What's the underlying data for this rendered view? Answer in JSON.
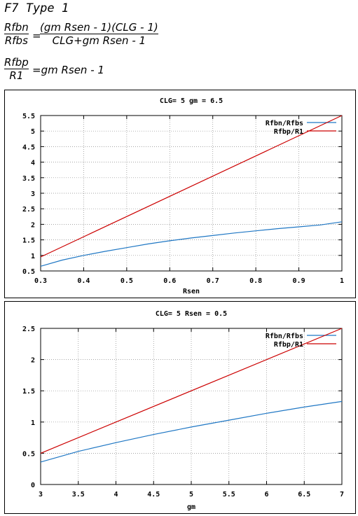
{
  "heading": "F7 Type 1",
  "equations": {
    "eq1": {
      "lhs_num": "Rfbn",
      "lhs_den": "Rfbs",
      "eq_sign": "=",
      "rhs_num": "(gm Rsen - 1)(CLG - 1)",
      "rhs_den": "CLG+gm Rsen - 1"
    },
    "eq2": {
      "lhs_num": "Rfbp",
      "lhs_den": "R1",
      "rhs": "=gm Rsen - 1"
    }
  },
  "colors": {
    "series1": "#1f77c4",
    "series2": "#cc0000",
    "grid": "#888888"
  },
  "chart_data": [
    {
      "type": "line",
      "title": "CLG= 5 gm = 6.5",
      "xlabel": "Rsen",
      "ylabel": "",
      "xlim": [
        0.3,
        1
      ],
      "ylim": [
        0.5,
        5.5
      ],
      "xticks": [
        0.3,
        0.4,
        0.5,
        0.6,
        0.7,
        0.8,
        0.9,
        1
      ],
      "yticks": [
        0.5,
        1,
        1.5,
        2,
        2.5,
        3,
        3.5,
        4,
        4.5,
        5,
        5.5
      ],
      "xtick_labels": [
        "0.3",
        "0.4",
        "0.5",
        "0.6",
        "0.7",
        "0.8",
        "0.9",
        "1"
      ],
      "ytick_labels": [
        "0.5",
        "1",
        "1.5",
        "2",
        "2.5",
        "3",
        "3.5",
        "4",
        "4.5",
        "5",
        "5.5"
      ],
      "grid": true,
      "legend": "top-right",
      "series": [
        {
          "name": "Rfbn/Rfbs",
          "color": "#1f77c4",
          "x": [
            0.3,
            0.35,
            0.4,
            0.45,
            0.5,
            0.55,
            0.6,
            0.65,
            0.7,
            0.75,
            0.8,
            0.85,
            0.9,
            0.95,
            1
          ],
          "y": [
            0.65,
            0.85,
            1.0,
            1.13,
            1.25,
            1.37,
            1.47,
            1.56,
            1.64,
            1.72,
            1.79,
            1.86,
            1.92,
            1.98,
            2.08
          ]
        },
        {
          "name": "Rfbp/R1",
          "color": "#cc0000",
          "x": [
            0.3,
            1
          ],
          "y": [
            0.95,
            5.5
          ]
        }
      ]
    },
    {
      "type": "line",
      "title": "CLG= 5 Rsen = 0.5",
      "xlabel": "gm",
      "ylabel": "",
      "xlim": [
        3,
        7
      ],
      "ylim": [
        0,
        2.5
      ],
      "xticks": [
        3,
        3.5,
        4,
        4.5,
        5,
        5.5,
        6,
        6.5,
        7
      ],
      "yticks": [
        0,
        0.5,
        1,
        1.5,
        2,
        2.5
      ],
      "xtick_labels": [
        "3",
        "3.5",
        "4",
        "4.5",
        "5",
        "5.5",
        "6",
        "6.5",
        "7"
      ],
      "ytick_labels": [
        "0",
        "0.5",
        "1",
        "1.5",
        "2",
        "2.5"
      ],
      "grid": true,
      "legend": "top-right",
      "series": [
        {
          "name": "Rfbn/Rfbs",
          "color": "#1f77c4",
          "x": [
            3,
            3.5,
            4,
            4.5,
            5,
            5.5,
            6,
            6.5,
            7
          ],
          "y": [
            0.36,
            0.53,
            0.67,
            0.8,
            0.92,
            1.03,
            1.14,
            1.24,
            1.33
          ]
        },
        {
          "name": "Rfbp/R1",
          "color": "#cc0000",
          "x": [
            3,
            7
          ],
          "y": [
            0.5,
            2.5
          ]
        }
      ]
    }
  ]
}
